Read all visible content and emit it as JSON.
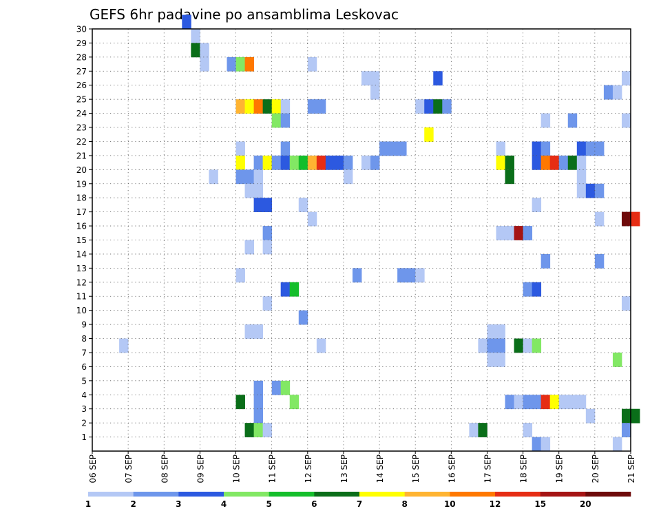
{
  "chart_data": {
    "type": "heatmap",
    "title": "GEFS 6hr padavine po ansamblima Leskovac",
    "x_tick_labels": [
      "06 SEP",
      "07 SEP",
      "08 SEP",
      "09 SEP",
      "10 SEP",
      "11 SEP",
      "12 SEP",
      "13 SEP",
      "14 SEP",
      "15 SEP",
      "16 SEP",
      "17 SEP",
      "18 SEP",
      "19 SEP",
      "20 SEP",
      "21 SEP"
    ],
    "x_range_days": [
      6,
      21
    ],
    "step_hours": 6,
    "y_tick_labels": [
      "1",
      "2",
      "3",
      "4",
      "5",
      "6",
      "7",
      "8",
      "9",
      "10",
      "11",
      "12",
      "13",
      "14",
      "15",
      "16",
      "17",
      "18",
      "19",
      "20",
      "21",
      "22",
      "23",
      "24",
      "25",
      "26",
      "27",
      "28",
      "29",
      "30"
    ],
    "y_range": [
      0,
      30
    ],
    "grid": "dotted",
    "color_scale": {
      "labels": [
        "1",
        "2",
        "3",
        "4",
        "5",
        "6",
        "7",
        "8",
        "10",
        "12",
        "15",
        "20"
      ],
      "colors": [
        "#b4c8f5",
        "#6e96eb",
        "#2c59e0",
        "#82e864",
        "#14be2b",
        "#0a6e19",
        "#ffff00",
        "#ffb432",
        "#ff7800",
        "#e62d14",
        "#a51414",
        "#6e0a0a"
      ]
    },
    "cells": [
      [
        10,
        30,
        2
      ],
      [
        11,
        29,
        0
      ],
      [
        11,
        28,
        5
      ],
      [
        12,
        28,
        0
      ],
      [
        12,
        27,
        0
      ],
      [
        15,
        27,
        1
      ],
      [
        16,
        27,
        3
      ],
      [
        17,
        27,
        8
      ],
      [
        24,
        27,
        0
      ],
      [
        30,
        26,
        0
      ],
      [
        31,
        26,
        0
      ],
      [
        31,
        25,
        0
      ],
      [
        38,
        26,
        2
      ],
      [
        59,
        26,
        0
      ],
      [
        57,
        25,
        1
      ],
      [
        58,
        25,
        0
      ],
      [
        16,
        24,
        7
      ],
      [
        17,
        24,
        6
      ],
      [
        18,
        24,
        8
      ],
      [
        19,
        24,
        5
      ],
      [
        20,
        24,
        6
      ],
      [
        21,
        24,
        0
      ],
      [
        24,
        24,
        1
      ],
      [
        25,
        24,
        1
      ],
      [
        36,
        24,
        0
      ],
      [
        37,
        24,
        2
      ],
      [
        38,
        24,
        5
      ],
      [
        39,
        24,
        1
      ],
      [
        20,
        23,
        3
      ],
      [
        21,
        23,
        1
      ],
      [
        50,
        23,
        0
      ],
      [
        53,
        23,
        1
      ],
      [
        59,
        23,
        0
      ],
      [
        37,
        22,
        6
      ],
      [
        16,
        21,
        0
      ],
      [
        45,
        21,
        0
      ],
      [
        49,
        21,
        2
      ],
      [
        50,
        21,
        1
      ],
      [
        56,
        21,
        1
      ],
      [
        21,
        21,
        1
      ],
      [
        32,
        21,
        1
      ],
      [
        33,
        21,
        1
      ],
      [
        34,
        21,
        1
      ],
      [
        54,
        21,
        2
      ],
      [
        55,
        21,
        1
      ],
      [
        56,
        21,
        1
      ],
      [
        16,
        20,
        6
      ],
      [
        18,
        20,
        1
      ],
      [
        19,
        20,
        6
      ],
      [
        20,
        20,
        1
      ],
      [
        21,
        20,
        2
      ],
      [
        22,
        20,
        3
      ],
      [
        23,
        20,
        4
      ],
      [
        24,
        20,
        7
      ],
      [
        25,
        20,
        9
      ],
      [
        26,
        20,
        2
      ],
      [
        27,
        20,
        2
      ],
      [
        28,
        20,
        1
      ],
      [
        30,
        20,
        0
      ],
      [
        31,
        20,
        1
      ],
      [
        45,
        20,
        6
      ],
      [
        46,
        20,
        5
      ],
      [
        49,
        20,
        2
      ],
      [
        50,
        20,
        8
      ],
      [
        51,
        20,
        9
      ],
      [
        52,
        20,
        1
      ],
      [
        53,
        20,
        5
      ],
      [
        54,
        20,
        0
      ],
      [
        13,
        19,
        0
      ],
      [
        16,
        19,
        1
      ],
      [
        17,
        19,
        1
      ],
      [
        18,
        19,
        0
      ],
      [
        28,
        19,
        0
      ],
      [
        46,
        19,
        5
      ],
      [
        54,
        19,
        0
      ],
      [
        17,
        18,
        0
      ],
      [
        18,
        18,
        0
      ],
      [
        54,
        18,
        0
      ],
      [
        55,
        18,
        2
      ],
      [
        56,
        18,
        1
      ],
      [
        18,
        17,
        2
      ],
      [
        19,
        17,
        2
      ],
      [
        49,
        17,
        0
      ],
      [
        23,
        17,
        0
      ],
      [
        24,
        16,
        0
      ],
      [
        56,
        16,
        0
      ],
      [
        59,
        16,
        11
      ],
      [
        60,
        16,
        9
      ],
      [
        45,
        15,
        0
      ],
      [
        46,
        15,
        0
      ],
      [
        47,
        15,
        10
      ],
      [
        48,
        15,
        1
      ],
      [
        19,
        15,
        1
      ],
      [
        17,
        14,
        0
      ],
      [
        19,
        14,
        0
      ],
      [
        50,
        13,
        1
      ],
      [
        56,
        13,
        1
      ],
      [
        16,
        12,
        0
      ],
      [
        29,
        12,
        1
      ],
      [
        34,
        12,
        1
      ],
      [
        35,
        12,
        1
      ],
      [
        36,
        12,
        0
      ],
      [
        21,
        11,
        2
      ],
      [
        22,
        11,
        4
      ],
      [
        48,
        11,
        1
      ],
      [
        49,
        11,
        2
      ],
      [
        19,
        10,
        0
      ],
      [
        59,
        10,
        0
      ],
      [
        23,
        9,
        1
      ],
      [
        17,
        8,
        0
      ],
      [
        18,
        8,
        0
      ],
      [
        44,
        8,
        0
      ],
      [
        45,
        8,
        0
      ],
      [
        3,
        7,
        0
      ],
      [
        25,
        7,
        0
      ],
      [
        43,
        7,
        0
      ],
      [
        44,
        7,
        1
      ],
      [
        45,
        7,
        1
      ],
      [
        47,
        7,
        5
      ],
      [
        48,
        7,
        0
      ],
      [
        49,
        7,
        3
      ],
      [
        44,
        6,
        0
      ],
      [
        45,
        6,
        0
      ],
      [
        58,
        6,
        3
      ],
      [
        18,
        4,
        1
      ],
      [
        20,
        4,
        1
      ],
      [
        21,
        4,
        3
      ],
      [
        16,
        3,
        5
      ],
      [
        18,
        3,
        1
      ],
      [
        22,
        3,
        3
      ],
      [
        46,
        3,
        1
      ],
      [
        47,
        3,
        0
      ],
      [
        48,
        3,
        1
      ],
      [
        49,
        3,
        1
      ],
      [
        50,
        3,
        9
      ],
      [
        51,
        3,
        6
      ],
      [
        52,
        3,
        0
      ],
      [
        53,
        3,
        0
      ],
      [
        54,
        3,
        0
      ],
      [
        18,
        2,
        1
      ],
      [
        55,
        2,
        0
      ],
      [
        59,
        2,
        5
      ],
      [
        60,
        2,
        5
      ],
      [
        17,
        1,
        5
      ],
      [
        18,
        1,
        3
      ],
      [
        19,
        1,
        0
      ],
      [
        42,
        1,
        0
      ],
      [
        43,
        1,
        5
      ],
      [
        48,
        1,
        0
      ],
      [
        59,
        1,
        1
      ],
      [
        49,
        0,
        1
      ],
      [
        50,
        0,
        0
      ],
      [
        58,
        0,
        0
      ]
    ]
  }
}
